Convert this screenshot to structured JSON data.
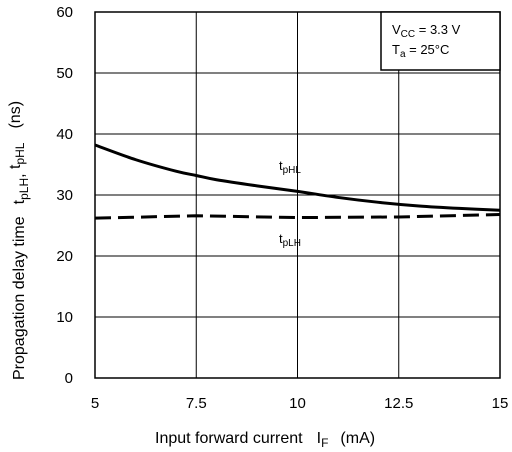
{
  "chart_data": {
    "type": "line",
    "xlabel": "Input forward current",
    "xlabel_symbol": "I",
    "xlabel_symbol_sub": "F",
    "xlabel_unit": "(mA)",
    "ylabel": "Propagation delay time",
    "ylabel_symbols": [
      {
        "main": "t",
        "sub": "pLH"
      },
      {
        "main": ", ",
        "sub": ""
      },
      {
        "main": "t",
        "sub": "pHL"
      }
    ],
    "ylabel_unit": "(ns)",
    "xlim": [
      5,
      15
    ],
    "ylim": [
      0,
      60
    ],
    "x_ticks": [
      5,
      7.5,
      10,
      12.5,
      15
    ],
    "x_tick_labels": [
      "5",
      "7.5",
      "10",
      "12.5",
      "15"
    ],
    "y_ticks": [
      0,
      10,
      20,
      30,
      40,
      50,
      60
    ],
    "y_tick_labels": [
      "0",
      "10",
      "20",
      "30",
      "40",
      "50",
      "60"
    ],
    "grid": true,
    "conditions": [
      {
        "main": "V",
        "sub": "CC",
        "rest": " = 3.3 V"
      },
      {
        "main": "T",
        "sub": "a",
        "rest": " = 25°C"
      }
    ],
    "series": [
      {
        "name": "tpHL",
        "label_main": "t",
        "label_sub": "pHL",
        "style": "solid",
        "x": [
          5,
          6,
          7,
          7.5,
          8,
          9,
          10,
          11,
          12,
          13,
          14,
          15
        ],
        "y": [
          38.2,
          35.8,
          33.9,
          33.2,
          32.5,
          31.5,
          30.6,
          29.6,
          28.8,
          28.2,
          27.8,
          27.5
        ]
      },
      {
        "name": "tpLH",
        "label_main": "t",
        "label_sub": "pLH",
        "style": "dashed",
        "x": [
          5,
          7.5,
          10,
          12.5,
          15
        ],
        "y": [
          26.2,
          26.6,
          26.3,
          26.4,
          26.8
        ]
      }
    ]
  }
}
